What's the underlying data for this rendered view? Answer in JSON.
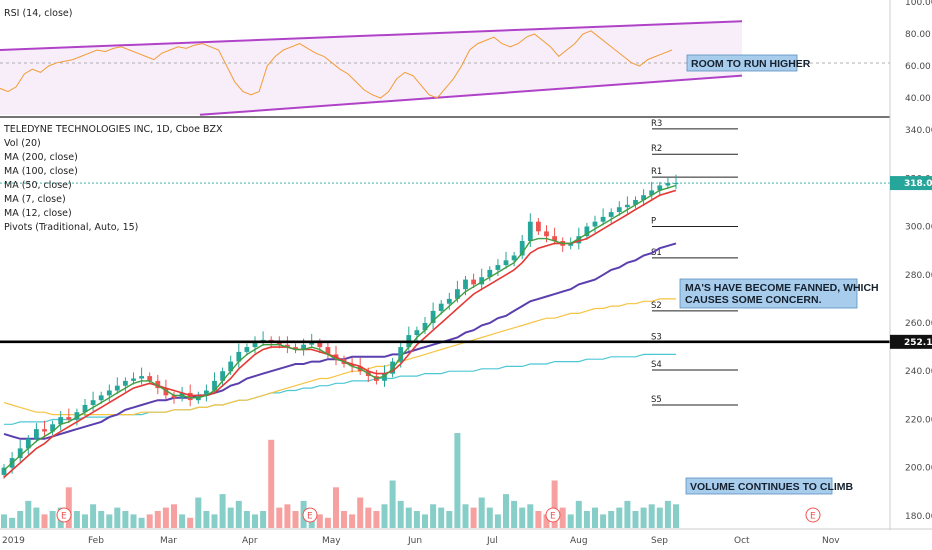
{
  "chart_data": {
    "type": "candlestick",
    "symbol": "TELEDYNE TECHNOLOGIES INC, 1D, Cboe BZX",
    "indicators": [
      "Vol (20)",
      "MA (200, close)",
      "MA (100, close)",
      "MA (50, close)",
      "MA (7, close)",
      "MA (12, close)",
      "Pivots (Traditional, Auto, 15)"
    ],
    "rsi": {
      "label": "RSI (14, close)",
      "ticks": [
        "100.00",
        "80.00",
        "60.00",
        "40.00"
      ],
      "channel_upper": [
        70,
        88
      ],
      "channel_lower": [
        32,
        54
      ],
      "annotation": "ROOM TO RUN HIGHER",
      "values": [
        46,
        44,
        47,
        55,
        58,
        56,
        60,
        62,
        63,
        64,
        66,
        68,
        70,
        69,
        71,
        72,
        70,
        68,
        66,
        64,
        68,
        70,
        72,
        71,
        73,
        74,
        72,
        70,
        60,
        50,
        44,
        42,
        44,
        60,
        66,
        70,
        72,
        74,
        71,
        68,
        66,
        62,
        58,
        55,
        50,
        45,
        42,
        40,
        44,
        52,
        56,
        54,
        48,
        42,
        40,
        46,
        52,
        60,
        70,
        74,
        76,
        78,
        74,
        72,
        74,
        78,
        80,
        76,
        72,
        66,
        70,
        74,
        80,
        82,
        78,
        74,
        70,
        66,
        62,
        60,
        64,
        66,
        68,
        70
      ]
    },
    "price": {
      "y_ticks": [
        "340.00",
        "320.00",
        "300.00",
        "280.00",
        "260.00",
        "240.00",
        "220.00",
        "200.00",
        "180.00"
      ],
      "ylim": [
        175,
        345
      ],
      "close": [
        200,
        204,
        208,
        212,
        216,
        215,
        218,
        221,
        220,
        223,
        226,
        228,
        230,
        232,
        234,
        236,
        237,
        238,
        236,
        233,
        230,
        229,
        231,
        228,
        230,
        232,
        236,
        240,
        244,
        248,
        250,
        252,
        253,
        252,
        251,
        250,
        249,
        251,
        252,
        250,
        247,
        245,
        243,
        242,
        240,
        238,
        236,
        239,
        244,
        250,
        255,
        257,
        260,
        265,
        268,
        270,
        274,
        278,
        276,
        279,
        282,
        284,
        286,
        288,
        294,
        302,
        298,
        296,
        294,
        292,
        293,
        296,
        300,
        302,
        304,
        306,
        308,
        309,
        311,
        313,
        315,
        317,
        318,
        318
      ],
      "ma7": [
        199,
        202,
        205,
        208,
        211,
        213,
        215,
        218,
        219,
        221,
        223,
        225,
        227,
        229,
        231,
        233,
        235,
        236,
        236,
        234,
        232,
        230,
        230,
        229,
        229,
        230,
        232,
        236,
        240,
        244,
        247,
        249,
        251,
        251,
        251,
        250,
        249,
        249,
        250,
        249,
        247,
        245,
        244,
        242,
        241,
        239,
        237,
        238,
        241,
        246,
        250,
        254,
        257,
        261,
        264,
        267,
        270,
        273,
        275,
        277,
        279,
        281,
        283,
        285,
        289,
        294,
        295,
        295,
        294,
        293,
        293,
        295,
        297,
        299,
        301,
        303,
        305,
        307,
        309,
        311,
        313,
        315,
        316,
        317
      ],
      "ma12": [
        196,
        199,
        202,
        205,
        208,
        210,
        213,
        215,
        217,
        219,
        221,
        223,
        225,
        227,
        229,
        231,
        233,
        234,
        235,
        234,
        233,
        232,
        231,
        230,
        230,
        230,
        231,
        234,
        237,
        241,
        244,
        247,
        249,
        250,
        250,
        250,
        249,
        249,
        249,
        248,
        247,
        246,
        244,
        243,
        242,
        240,
        239,
        239,
        240,
        243,
        247,
        251,
        254,
        257,
        260,
        263,
        266,
        269,
        272,
        274,
        276,
        278,
        280,
        282,
        285,
        289,
        291,
        292,
        293,
        293,
        293,
        294,
        295,
        297,
        299,
        301,
        303,
        305,
        307,
        309,
        311,
        313,
        314,
        315
      ],
      "ma50": [
        214,
        213,
        212,
        212,
        212,
        212,
        213,
        214,
        215,
        216,
        217,
        218,
        219,
        221,
        222,
        224,
        225,
        226,
        227,
        228,
        228,
        229,
        229,
        229,
        230,
        230,
        231,
        232,
        234,
        235,
        237,
        238,
        239,
        240,
        241,
        242,
        243,
        243,
        244,
        244,
        245,
        245,
        245,
        246,
        246,
        246,
        246,
        246,
        247,
        247,
        248,
        249,
        250,
        251,
        252,
        253,
        254,
        256,
        257,
        259,
        260,
        262,
        263,
        265,
        267,
        269,
        270,
        271,
        272,
        273,
        274,
        276,
        277,
        278,
        280,
        282,
        283,
        285,
        286,
        288,
        289,
        291,
        292,
        293
      ],
      "ma100": [
        227,
        226,
        225,
        224,
        223,
        223,
        222,
        222,
        222,
        222,
        222,
        222,
        222,
        222,
        222,
        222,
        222,
        223,
        223,
        223,
        223,
        224,
        224,
        224,
        225,
        225,
        226,
        226,
        227,
        228,
        228,
        229,
        230,
        231,
        232,
        233,
        234,
        235,
        236,
        237,
        237,
        238,
        239,
        240,
        240,
        241,
        242,
        242,
        243,
        244,
        245,
        246,
        247,
        248,
        249,
        250,
        251,
        252,
        253,
        254,
        255,
        256,
        257,
        258,
        259,
        260,
        261,
        262,
        262,
        263,
        264,
        264,
        265,
        266,
        266,
        267,
        267,
        268,
        268,
        269,
        269,
        270,
        270,
        270
      ],
      "ma200": [
        218,
        218,
        219,
        219,
        219,
        219,
        220,
        220,
        220,
        220,
        221,
        221,
        221,
        221,
        222,
        222,
        222,
        222,
        223,
        223,
        223,
        224,
        224,
        224,
        225,
        225,
        226,
        226,
        227,
        228,
        228,
        229,
        230,
        231,
        231,
        232,
        232,
        233,
        233,
        234,
        234,
        235,
        235,
        236,
        236,
        236,
        237,
        237,
        237,
        238,
        238,
        238,
        239,
        239,
        239,
        240,
        240,
        240,
        240,
        241,
        241,
        241,
        242,
        242,
        242,
        243,
        243,
        243,
        244,
        244,
        244,
        244,
        245,
        245,
        245,
        246,
        246,
        246,
        246,
        247,
        247,
        247,
        247,
        247
      ],
      "current_price": "318.02",
      "support_price": "252.19",
      "pivots": [
        {
          "label": "R3",
          "value": 340.5
        },
        {
          "label": "R2",
          "value": 330
        },
        {
          "label": "R1",
          "value": 320.5
        },
        {
          "label": "P",
          "value": 300
        },
        {
          "label": "S1",
          "value": 287
        },
        {
          "label": "S2",
          "value": 265
        },
        {
          "label": "S3",
          "value": 252
        },
        {
          "label": "S4",
          "value": 240.5
        },
        {
          "label": "S5",
          "value": 226
        }
      ]
    },
    "volume": [
      4,
      3,
      5,
      8,
      6,
      4,
      5,
      6,
      12,
      5,
      4,
      7,
      5,
      4,
      6,
      5,
      4,
      3,
      4,
      5,
      6,
      7,
      4,
      3,
      9,
      5,
      4,
      10,
      6,
      8,
      5,
      4,
      5,
      26,
      6,
      7,
      5,
      8,
      4,
      4,
      3,
      12,
      5,
      4,
      9,
      6,
      5,
      7,
      14,
      8,
      6,
      5,
      4,
      7,
      6,
      5,
      28,
      7,
      6,
      9,
      6,
      4,
      10,
      8,
      6,
      7,
      5,
      4,
      14,
      6,
      4,
      8,
      5,
      6,
      4,
      5,
      6,
      8,
      5,
      6,
      7,
      6,
      8,
      7
    ],
    "x_ticks": [
      "2019",
      "Feb",
      "Mar",
      "Apr",
      "May",
      "Jun",
      "Jul",
      "Aug",
      "Sep",
      "Oct",
      "Nov"
    ],
    "earnings_marker": "E",
    "annotations": {
      "ma_note_line1": "MA'S HAVE BECOME FANNED, WHICH",
      "ma_note_line2": "CAUSES SOME CONCERN.",
      "volume_note": "VOLUME CONTINUES TO CLIMB"
    },
    "colors": {
      "rsi_line": "#f39c34",
      "rsi_channel": "#b042c8",
      "up": "#26a69a",
      "down": "#ef5350",
      "ma7": "#3f9e3f",
      "ma12": "#e53935",
      "ma50": "#5b3fae",
      "ma100": "#f6c343",
      "ma200": "#4ec7d5",
      "note_bg": "#a8cdec",
      "price_tag": "#26a69a"
    }
  }
}
